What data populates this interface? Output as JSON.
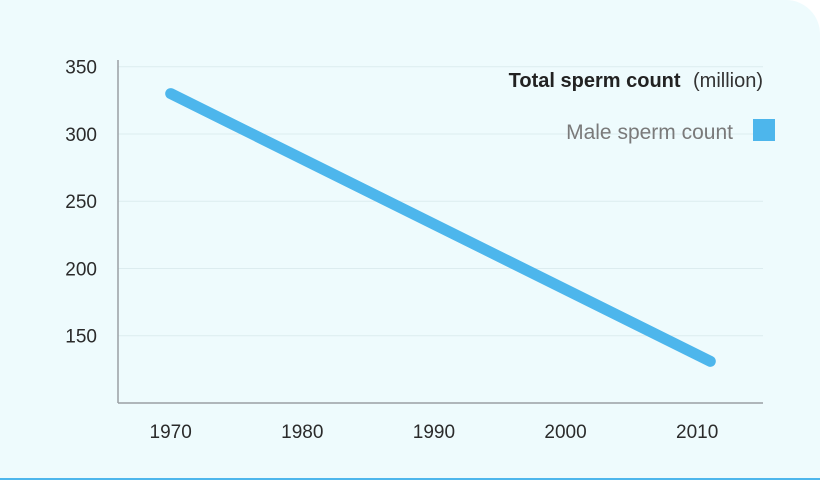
{
  "chart_data": {
    "type": "line",
    "title": "Total sperm count",
    "title_unit": "(million)",
    "x": [
      1970,
      2011
    ],
    "x_ticks": [
      "1970",
      "1980",
      "1990",
      "2000",
      "2010"
    ],
    "y_ticks": [
      "350",
      "300",
      "250",
      "200",
      "150"
    ],
    "ylim": [
      100,
      355
    ],
    "xlim": [
      1966,
      2015
    ],
    "grid": true,
    "legend_position": "top-right",
    "series": [
      {
        "name": "Male sperm count",
        "values": [
          330,
          131
        ],
        "color": "#4db6ec"
      }
    ]
  },
  "colors": {
    "background": "#eefbfd",
    "line": "#4db6ec",
    "grid": "#dcecef",
    "axis": "#9aa0a3"
  }
}
